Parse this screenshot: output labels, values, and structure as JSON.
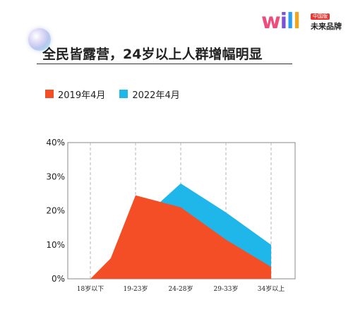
{
  "title": "全民皆露营，24岁以上人群增幅明显",
  "brand": {
    "word_parts": [
      "w",
      "i",
      "l",
      "l"
    ],
    "tag": "中国版",
    "name": "未来品牌"
  },
  "colors": {
    "series_2019": "#f44e26",
    "series_2022": "#1fb6ea",
    "grid": "#b5b5b5",
    "axis": "#888888",
    "text": "#222222"
  },
  "chart_data": {
    "type": "area",
    "categories": [
      "18岁以下",
      "19-23岁",
      "24-28岁",
      "29-33岁",
      "34岁以上"
    ],
    "y_ticks": [
      "0%",
      "10%",
      "20%",
      "30%",
      "40%"
    ],
    "ylim": [
      0,
      40
    ],
    "series": [
      {
        "name": "2019年4月",
        "points": [
          [
            0,
            0
          ],
          [
            0.45,
            6
          ],
          [
            1,
            24.5
          ],
          [
            2,
            21
          ],
          [
            3,
            11.5
          ],
          [
            4,
            3.5
          ]
        ]
      },
      {
        "name": "2022年4月",
        "points": [
          [
            1.5,
            22
          ],
          [
            2,
            28
          ],
          [
            3,
            19.5
          ],
          [
            4,
            10
          ]
        ]
      }
    ],
    "grid": "vertical-dashed",
    "legend_position": "top-left"
  }
}
